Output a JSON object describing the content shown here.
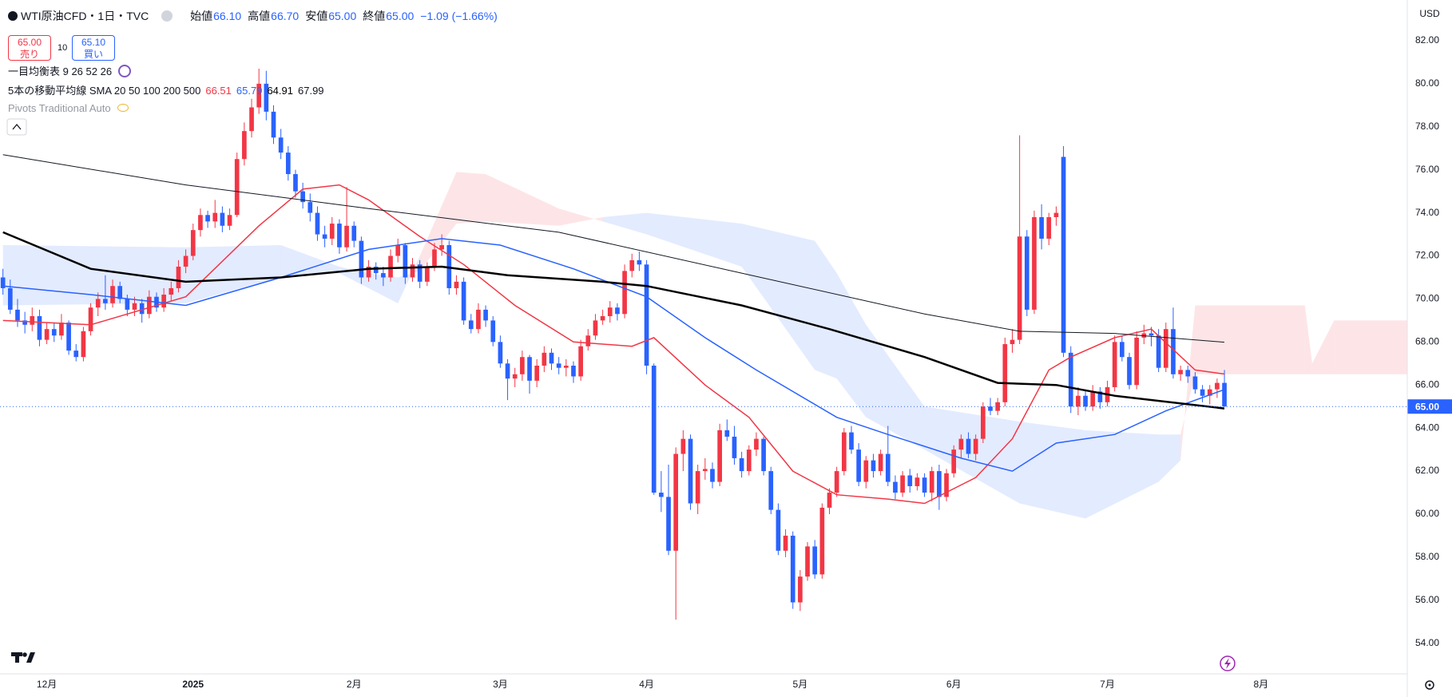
{
  "header": {
    "symbol": "WTI原油CFD・1日・TVC",
    "ohlc": [
      {
        "label": "始値",
        "value": "66.10"
      },
      {
        "label": "高値",
        "value": "66.70"
      },
      {
        "label": "安値",
        "value": "65.00"
      },
      {
        "label": "終値",
        "value": "65.00"
      }
    ],
    "change": "−1.09 (−1.66%)",
    "sell_price": "65.00",
    "sell_label": "売り",
    "spread": "10",
    "buy_price": "65.10",
    "buy_label": "買い",
    "ichimoku": "一目均衡表 9 26 52 26",
    "ma_legend": "5本の移動平均線 SMA 20 50 100 200 500",
    "pivots": "Pivots Traditional Auto"
  },
  "chart_data": {
    "type": "candlestick",
    "currency": "USD",
    "up_color": "#f23645",
    "down_color": "#2962ff",
    "open": [
      71.0,
      70.5,
      69.5,
      69.0,
      68.8,
      69.2,
      68.1,
      68.6,
      68.3,
      68.9,
      67.6,
      67.3,
      68.5,
      69.6,
      70.0,
      69.8,
      70.6,
      70.0,
      69.5,
      69.8,
      69.3,
      70.1,
      69.6,
      70.2,
      70.5,
      71.5,
      72.0,
      73.2,
      73.9,
      73.6,
      74.0,
      73.4,
      73.9,
      76.5,
      77.8,
      78.9,
      80.0,
      78.7,
      77.5,
      76.8,
      75.8,
      75.0,
      74.5,
      74.0,
      73.0,
      72.8,
      73.5,
      72.4,
      73.4,
      72.7,
      71.0,
      71.5,
      71.2,
      71.0,
      72.0,
      72.5,
      71.0,
      71.6,
      70.8,
      71.5,
      72.3,
      72.5,
      70.5,
      70.8,
      69.0,
      68.6,
      69.5,
      69.0,
      68.0,
      67.0,
      66.3,
      66.5,
      67.3,
      66.2,
      66.9,
      67.5,
      67.0,
      66.8,
      66.9,
      66.4,
      67.8,
      68.3,
      69.0,
      69.2,
      69.6,
      69.3,
      71.3,
      71.8,
      71.6,
      66.9,
      61.0,
      60.8,
      58.3,
      62.8,
      63.5,
      60.5,
      62.0,
      62.1,
      61.5,
      63.9,
      63.6,
      62.6,
      62.0,
      63.0,
      63.5,
      62.0,
      60.2,
      58.3,
      59.0,
      55.9,
      57.1,
      58.5,
      57.2,
      60.3,
      61.0,
      62.0,
      63.8,
      63.0,
      61.5,
      62.5,
      62.0,
      62.8,
      61.5,
      61.0,
      61.8,
      61.3,
      61.7,
      61.0,
      62.0,
      60.8,
      61.9,
      63.0,
      63.5,
      62.8,
      63.5,
      65.0,
      64.8,
      65.2,
      67.9,
      68.1,
      72.9,
      69.5,
      73.8,
      72.8,
      73.8,
      76.6,
      67.5,
      65.0,
      65.5,
      65.0,
      65.7,
      65.2,
      65.9,
      68.0,
      67.3,
      66.0,
      68.2,
      68.4,
      68.3,
      66.8,
      68.6,
      66.5,
      66.7,
      66.4,
      65.8,
      65.5,
      65.8,
      66.1
    ],
    "high": [
      71.4,
      70.9,
      70.0,
      69.4,
      69.6,
      69.5,
      68.9,
      68.9,
      69.3,
      69.0,
      67.9,
      68.7,
      69.8,
      70.3,
      71.1,
      70.9,
      70.8,
      70.2,
      70.1,
      70.0,
      70.4,
      70.3,
      70.5,
      70.8,
      71.8,
      72.3,
      73.5,
      74.2,
      74.1,
      74.6,
      74.3,
      74.2,
      76.8,
      78.2,
      79.3,
      80.7,
      80.6,
      79.0,
      77.9,
      77.1,
      76.0,
      75.4,
      74.9,
      74.3,
      73.4,
      73.8,
      73.7,
      75.2,
      73.6,
      72.9,
      71.8,
      71.7,
      71.5,
      72.3,
      72.8,
      72.6,
      71.9,
      71.8,
      71.7,
      72.6,
      73.0,
      72.7,
      71.1,
      71.0,
      69.3,
      69.8,
      69.7,
      69.2,
      68.3,
      67.2,
      66.8,
      67.6,
      67.4,
      67.2,
      67.8,
      67.7,
      67.3,
      67.2,
      67.1,
      68.1,
      68.6,
      69.3,
      69.5,
      69.9,
      69.8,
      71.6,
      72.1,
      72.2,
      71.8,
      67.0,
      62.0,
      62.3,
      63.1,
      63.9,
      63.7,
      62.3,
      62.6,
      62.4,
      64.2,
      64.4,
      64.1,
      62.9,
      63.2,
      63.8,
      63.6,
      62.2,
      60.5,
      59.3,
      59.2,
      57.4,
      58.7,
      58.8,
      60.5,
      61.2,
      62.2,
      64.0,
      64.1,
      63.3,
      62.7,
      62.8,
      63.0,
      64.1,
      61.8,
      62.0,
      62.1,
      61.9,
      61.9,
      62.2,
      62.3,
      62.1,
      63.2,
      63.7,
      63.8,
      63.7,
      65.2,
      65.4,
      65.4,
      68.2,
      68.6,
      77.6,
      73.2,
      74.1,
      74.4,
      74.0,
      74.3,
      77.1,
      67.8,
      65.9,
      65.8,
      66.0,
      65.9,
      66.2,
      68.3,
      68.3,
      67.5,
      68.5,
      68.8,
      68.7,
      68.6,
      68.9,
      69.6,
      66.9,
      66.9,
      66.6,
      66.0,
      66.0,
      66.3,
      66.7
    ],
    "low": [
      70.2,
      69.3,
      68.7,
      68.4,
      68.5,
      67.8,
      67.9,
      68.0,
      68.1,
      67.4,
      67.1,
      67.1,
      68.3,
      69.2,
      69.5,
      69.6,
      69.8,
      69.2,
      69.2,
      68.9,
      69.1,
      69.4,
      69.4,
      69.9,
      70.3,
      71.2,
      71.8,
      72.9,
      73.3,
      73.3,
      73.1,
      73.2,
      73.8,
      76.2,
      77.5,
      78.6,
      78.3,
      77.2,
      76.5,
      75.5,
      74.7,
      74.2,
      73.6,
      72.7,
      72.4,
      72.5,
      72.1,
      72.2,
      72.4,
      70.7,
      70.8,
      70.9,
      70.6,
      70.8,
      71.7,
      70.7,
      70.8,
      70.5,
      70.6,
      71.3,
      72.0,
      70.2,
      70.2,
      68.8,
      68.4,
      68.4,
      68.7,
      67.8,
      66.8,
      65.3,
      65.9,
      66.2,
      65.6,
      65.9,
      66.6,
      66.7,
      66.5,
      66.4,
      66.1,
      66.2,
      67.6,
      68.1,
      68.8,
      68.9,
      69.0,
      69.1,
      71.0,
      71.3,
      66.5,
      60.9,
      60.1,
      58.1,
      55.1,
      62.0,
      60.2,
      60.0,
      61.6,
      61.2,
      61.3,
      63.4,
      62.3,
      61.7,
      61.8,
      62.7,
      61.8,
      60.0,
      58.1,
      58.0,
      55.6,
      55.5,
      56.9,
      57.0,
      57.0,
      60.0,
      60.8,
      61.8,
      62.8,
      61.3,
      61.2,
      61.7,
      61.8,
      61.3,
      60.7,
      60.8,
      61.0,
      61.1,
      60.8,
      60.6,
      60.2,
      60.6,
      61.7,
      62.6,
      62.6,
      62.5,
      63.3,
      64.6,
      64.6,
      65.0,
      67.5,
      67.9,
      69.2,
      69.3,
      72.3,
      72.5,
      73.4,
      67.3,
      64.7,
      64.6,
      64.8,
      64.8,
      64.9,
      65.0,
      65.7,
      67.1,
      65.8,
      65.8,
      67.9,
      67.8,
      66.6,
      66.6,
      66.3,
      66.2,
      66.1,
      65.6,
      65.2,
      65.1,
      65.4,
      65.0
    ],
    "close": [
      70.5,
      69.5,
      69.0,
      68.8,
      69.2,
      68.1,
      68.6,
      68.3,
      68.9,
      67.6,
      67.3,
      68.5,
      69.6,
      70.0,
      69.8,
      70.6,
      70.0,
      69.5,
      69.8,
      69.3,
      70.1,
      69.6,
      70.2,
      70.5,
      71.5,
      72.0,
      73.2,
      73.9,
      73.6,
      74.0,
      73.4,
      73.9,
      76.5,
      77.8,
      78.9,
      80.0,
      78.7,
      77.5,
      76.8,
      75.8,
      75.0,
      74.5,
      74.0,
      73.0,
      72.8,
      73.5,
      72.4,
      73.4,
      72.7,
      71.0,
      71.5,
      71.2,
      71.0,
      72.0,
      72.5,
      71.0,
      71.6,
      70.8,
      71.5,
      72.3,
      72.5,
      70.5,
      70.8,
      69.0,
      68.6,
      69.5,
      69.0,
      68.0,
      67.0,
      66.3,
      66.5,
      67.3,
      66.2,
      66.9,
      67.5,
      67.0,
      66.8,
      66.9,
      66.4,
      67.8,
      68.3,
      69.0,
      69.2,
      69.6,
      69.3,
      71.3,
      71.8,
      71.6,
      66.9,
      61.0,
      60.8,
      58.3,
      62.8,
      63.5,
      60.5,
      62.0,
      62.1,
      61.5,
      63.9,
      63.6,
      62.6,
      62.0,
      63.0,
      63.5,
      62.0,
      60.2,
      58.3,
      59.0,
      55.9,
      57.1,
      58.5,
      57.2,
      60.3,
      61.0,
      62.0,
      63.8,
      63.0,
      61.5,
      62.5,
      62.0,
      62.8,
      61.5,
      61.0,
      61.8,
      61.3,
      61.7,
      61.0,
      62.0,
      60.8,
      61.9,
      63.0,
      63.5,
      62.8,
      63.5,
      65.0,
      64.8,
      65.2,
      67.9,
      68.1,
      72.9,
      69.5,
      73.8,
      72.8,
      73.8,
      74.0,
      67.5,
      65.0,
      65.5,
      65.0,
      65.7,
      65.2,
      65.9,
      68.0,
      67.3,
      66.0,
      68.2,
      68.4,
      68.3,
      66.8,
      68.6,
      66.5,
      66.7,
      66.4,
      65.8,
      65.5,
      65.8,
      66.1,
      65.0
    ],
    "xlim": [
      -0.4,
      192
    ],
    "xticks": [
      {
        "value": 6,
        "label": "12月"
      },
      {
        "value": 26,
        "label": "2025"
      },
      {
        "value": 48,
        "label": "2月"
      },
      {
        "value": 68,
        "label": "3月"
      },
      {
        "value": 88,
        "label": "4月"
      },
      {
        "value": 109,
        "label": "5月"
      },
      {
        "value": 130,
        "label": "6月"
      },
      {
        "value": 151,
        "label": "7月"
      },
      {
        "value": 172,
        "label": "8月"
      }
    ],
    "ylim": [
      52.58,
      83.89
    ],
    "yticks": [
      {
        "value": 54,
        "label": "54.00"
      },
      {
        "value": 56,
        "label": "56.00"
      },
      {
        "value": 58,
        "label": "58.00"
      },
      {
        "value": 60,
        "label": "60.00"
      },
      {
        "value": 62,
        "label": "62.00"
      },
      {
        "value": 64,
        "label": "64.00"
      },
      {
        "value": 66,
        "label": "66.00"
      },
      {
        "value": 68,
        "label": "68.00"
      },
      {
        "value": 70,
        "label": "70.00"
      },
      {
        "value": 72,
        "label": "72.00"
      },
      {
        "value": 74,
        "label": "74.00"
      },
      {
        "value": 76,
        "label": "76.00"
      },
      {
        "value": 78,
        "label": "78.00"
      },
      {
        "value": 80,
        "label": "80.00"
      },
      {
        "value": 82,
        "label": "82.00"
      }
    ],
    "grid": false,
    "lines": [
      {
        "color": "#f23645",
        "width": 1.5,
        "legend_value": "66.51",
        "x": [
          0,
          12,
          25,
          35,
          41,
          46,
          50,
          57,
          63,
          70,
          78,
          86,
          89,
          96,
          102,
          108,
          114,
          121,
          126,
          133,
          138,
          143,
          146,
          152,
          157,
          163,
          167
        ],
        "values": [
          69.0,
          68.8,
          70.1,
          73.4,
          75.1,
          75.3,
          74.6,
          72.9,
          71.6,
          69.7,
          68.0,
          67.8,
          68.2,
          66.0,
          64.5,
          62.0,
          60.9,
          60.7,
          60.5,
          61.7,
          63.5,
          66.7,
          67.3,
          68.2,
          68.6,
          66.7,
          66.51
        ]
      },
      {
        "color": "#2962ff",
        "width": 1.5,
        "legend_value": "65.79",
        "x": [
          0,
          12,
          25,
          38,
          50,
          60,
          68,
          78,
          88,
          96,
          103,
          114,
          121,
          131,
          138,
          144,
          152,
          159,
          167
        ],
        "values": [
          70.6,
          70.2,
          69.7,
          71.0,
          72.3,
          72.8,
          72.5,
          71.4,
          70.1,
          68.2,
          66.7,
          64.5,
          63.7,
          62.6,
          62.0,
          63.3,
          63.7,
          64.8,
          65.79
        ]
      },
      {
        "color": "#000000",
        "width": 2.5,
        "legend_value": "64.91",
        "x": [
          0,
          12,
          25,
          38,
          50,
          60,
          69,
          82,
          88,
          101,
          113,
          126,
          136,
          144,
          152,
          167
        ],
        "values": [
          73.1,
          71.4,
          70.8,
          71.0,
          71.4,
          71.5,
          71.1,
          70.8,
          70.6,
          69.7,
          68.6,
          67.3,
          66.1,
          66.0,
          65.5,
          64.91
        ]
      },
      {
        "color": "#131722",
        "width": 1,
        "legend_value": "67.99",
        "x": [
          0,
          25,
          50,
          76,
          101,
          126,
          139,
          152,
          167
        ],
        "values": [
          76.7,
          75.3,
          74.2,
          73.1,
          71.2,
          69.3,
          68.5,
          68.4,
          67.99
        ]
      }
    ],
    "cloud": {
      "up_color": "rgba(242,54,69,0.13)",
      "down_color": "rgba(41,98,255,0.13)",
      "x": [
        0,
        25,
        38,
        46,
        50,
        54,
        57,
        62,
        66,
        76,
        82,
        88,
        101,
        111,
        114,
        118,
        126,
        139,
        148,
        158,
        161,
        163,
        178,
        179,
        182,
        192
      ],
      "span_a": [
        69.7,
        69.8,
        71.0,
        71.2,
        70.5,
        69.8,
        72.0,
        75.9,
        75.8,
        74.2,
        73.6,
        73.0,
        71.5,
        66.7,
        66.3,
        64.5,
        63.0,
        60.5,
        59.8,
        61.5,
        62.5,
        69.7,
        69.7,
        67.0,
        69.0,
        69.0
      ],
      "span_b": [
        72.5,
        72.4,
        72.5,
        71.5,
        71.2,
        71.0,
        71.3,
        73.5,
        73.6,
        73.4,
        73.8,
        74.0,
        73.5,
        72.7,
        71.2,
        68.8,
        65.0,
        64.3,
        63.9,
        63.7,
        63.7,
        66.5,
        66.5,
        66.5,
        66.5,
        66.5
      ]
    },
    "price_line": {
      "value": 65.0,
      "label": "65.00",
      "color": "#2962ff"
    }
  }
}
